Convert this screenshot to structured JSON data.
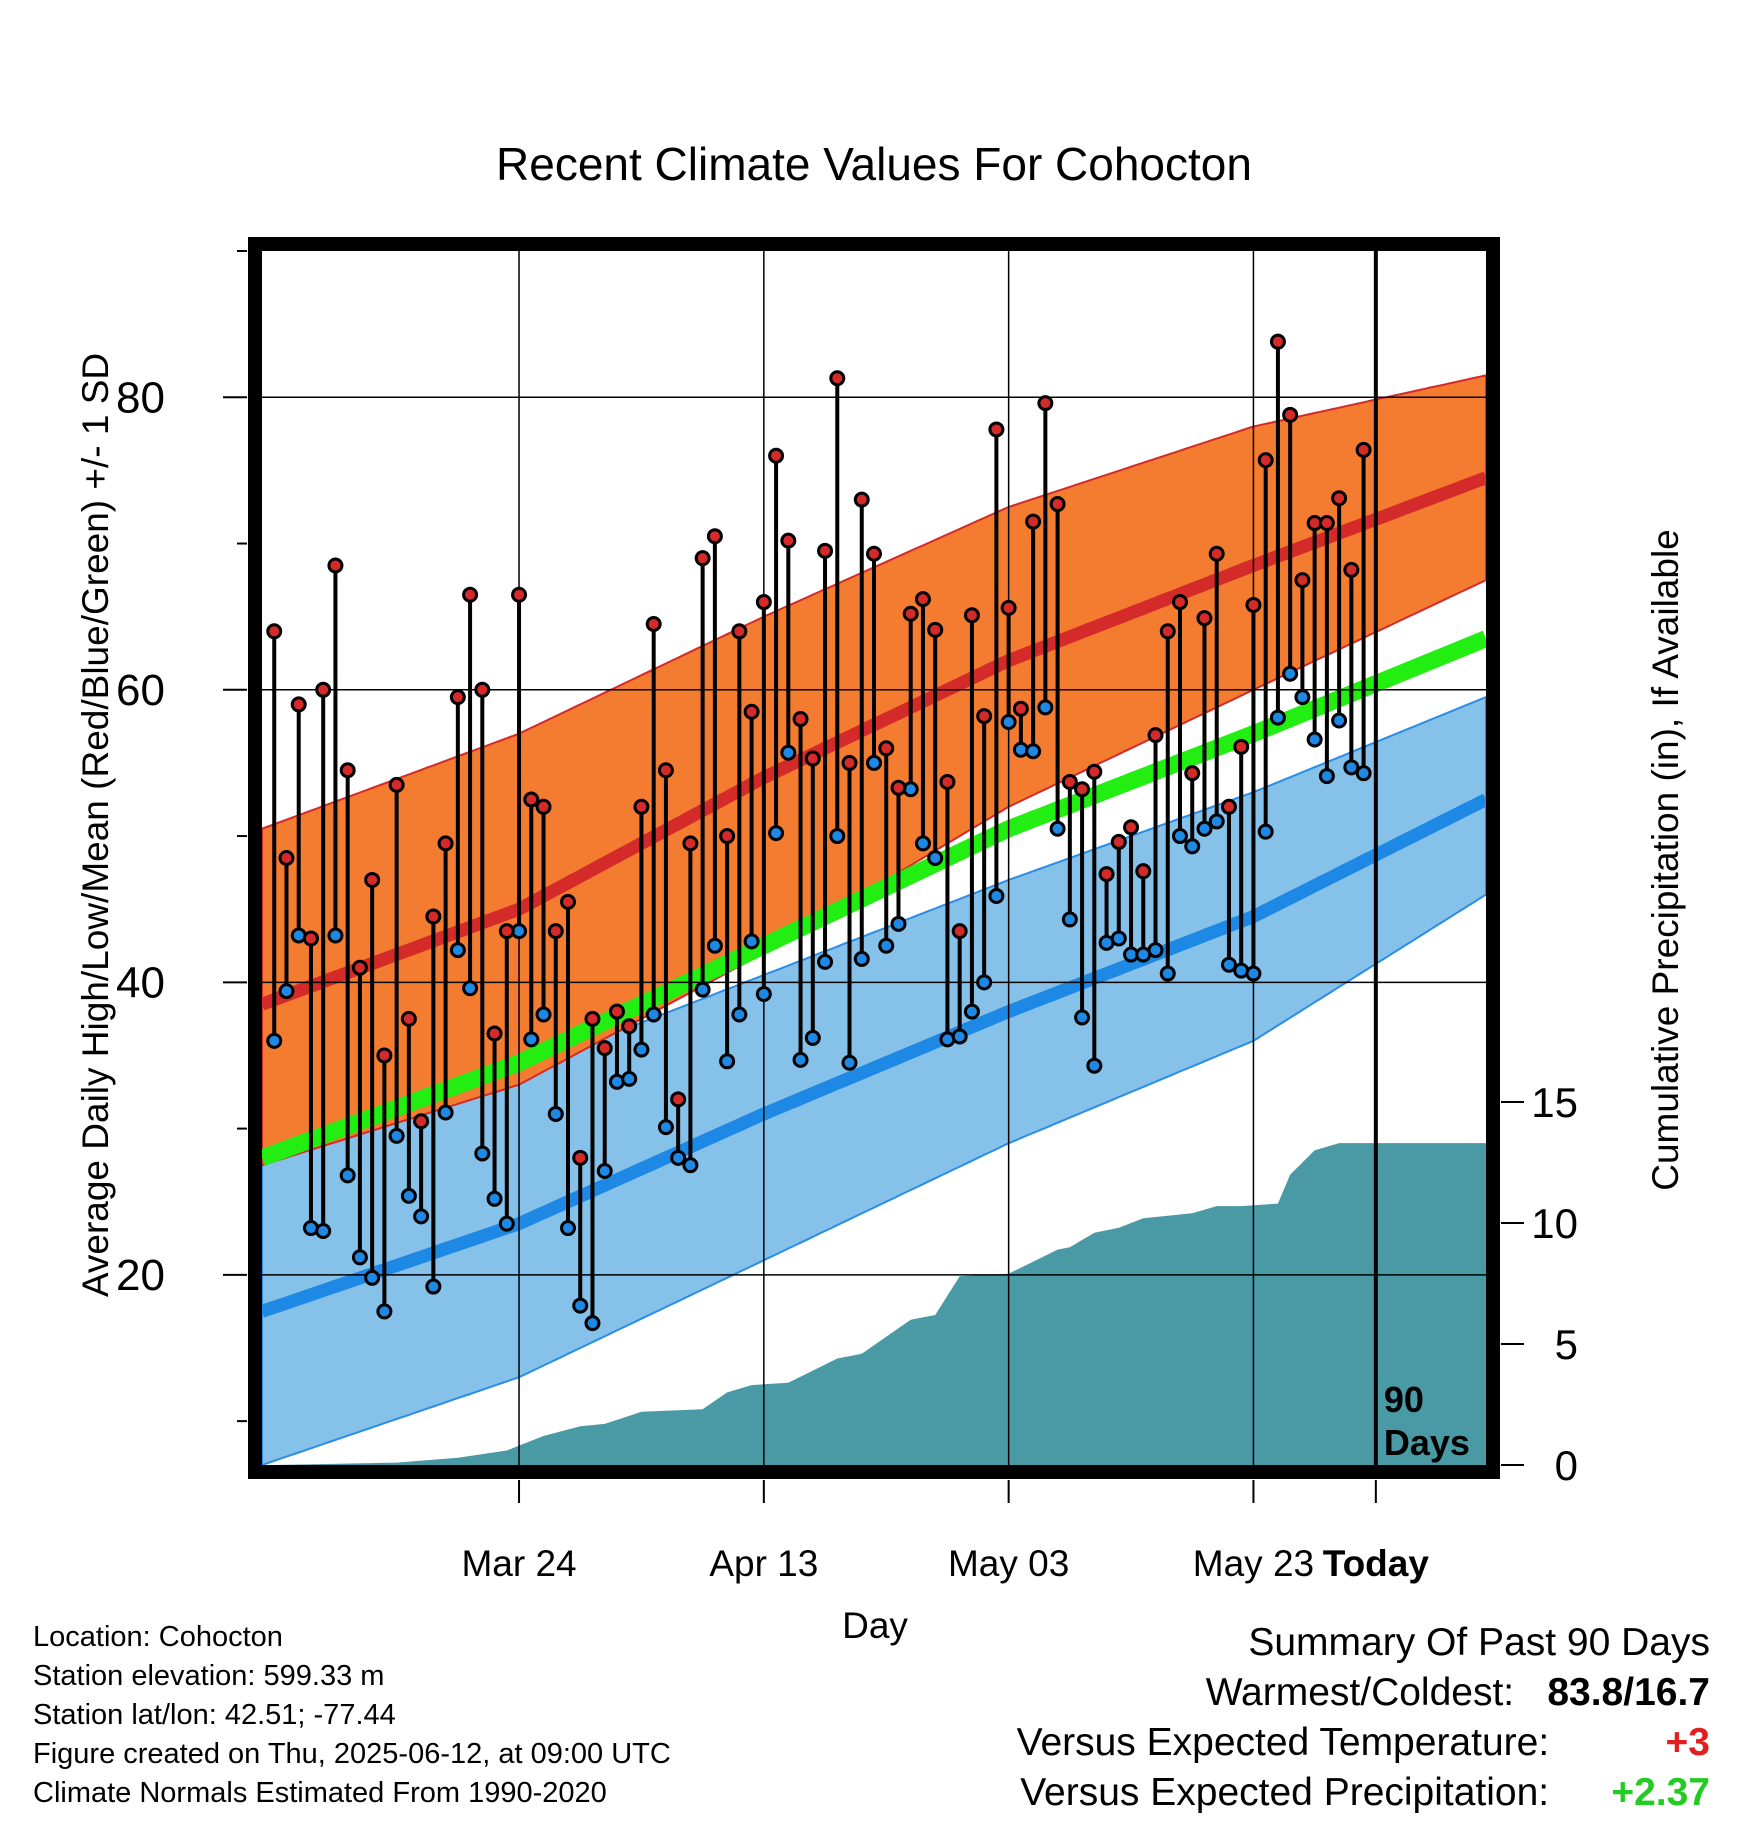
{
  "title": "Recent Climate Values For Cohocton",
  "chart_data": {
    "type": "line",
    "title": "Recent Climate Values For Cohocton",
    "xlabel": "Day",
    "ylabel": "Average Daily High/Low/Mean (Red/Blue/Green) +/- 1 SD",
    "y2label": "Cumulative Precipitation (in), If Available",
    "x_tick_labels": [
      "Mar 24",
      "Apr 13",
      "May 03",
      "May 23",
      "Today"
    ],
    "y_ticks": [
      "20",
      "40",
      "60",
      "80"
    ],
    "y2_ticks": [
      "0",
      "5",
      "10",
      "15"
    ],
    "ylim": [
      7,
      90
    ],
    "y2lim": [
      0,
      15
    ],
    "xlim": [
      -91,
      9
    ],
    "today_label": "90 Days",
    "grid": true,
    "colors": {
      "high_band": "#f47c30",
      "high_line": "#d42a2a",
      "low_band": "#85c1e9",
      "low_line": "#1e88e5",
      "mean_line": "#22ee11",
      "precip": "#4a9aa5",
      "high_marker": "#d42a2a",
      "low_marker": "#1e88e5"
    },
    "normals": {
      "x": [
        -91,
        -70,
        -50,
        -30,
        -10,
        9
      ],
      "high_mean": [
        38.5,
        45,
        54,
        62,
        68.5,
        74.5
      ],
      "high_upper": [
        50.5,
        57,
        65,
        72.5,
        78,
        81.5
      ],
      "high_lower": [
        27.5,
        33,
        42,
        52,
        60,
        67.5
      ],
      "low_mean": [
        17.5,
        23.5,
        31,
        38,
        44.5,
        52.5
      ],
      "low_upper": [
        29,
        34,
        40.5,
        47,
        53,
        59.5
      ],
      "low_lower": [
        7,
        13,
        21,
        29,
        36,
        46
      ],
      "avg_mean": [
        28,
        34.5,
        42.5,
        50.5,
        57,
        63.5
      ]
    },
    "series": [
      {
        "name": "High",
        "x": [
          -90,
          -89,
          -88,
          -87,
          -86,
          -85,
          -84,
          -83,
          -82,
          -81,
          -80,
          -79,
          -78,
          -77,
          -76,
          -75,
          -74,
          -73,
          -72,
          -71,
          -70,
          -69,
          -68,
          -67,
          -66,
          -65,
          -64,
          -63,
          -62,
          -61,
          -60,
          -59,
          -58,
          -57,
          -56,
          -55,
          -54,
          -53,
          -52,
          -51,
          -50,
          -49,
          -48,
          -47,
          -46,
          -45,
          -44,
          -43,
          -42,
          -41,
          -40,
          -39,
          -38,
          -37,
          -36,
          -35,
          -34,
          -33,
          -32,
          -31,
          -30,
          -29,
          -28,
          -27,
          -26,
          -25,
          -24,
          -23,
          -22,
          -21,
          -20,
          -19,
          -18,
          -17,
          -16,
          -15,
          -14,
          -13,
          -12,
          -11,
          -10,
          -9,
          -8,
          -7,
          -6,
          -5,
          -4,
          -3,
          -2,
          -1
        ],
        "values": [
          64,
          48.5,
          59,
          43,
          60,
          68.5,
          54.5,
          41,
          47,
          35,
          53.5,
          37.5,
          30.5,
          44.5,
          49.5,
          59.5,
          66.5,
          60,
          36.5,
          43.5,
          66.5,
          52.5,
          52,
          43.5,
          45.5,
          28,
          37.5,
          35.5,
          38,
          37,
          52,
          64.5,
          54.5,
          32,
          49.5,
          69,
          70.5,
          50,
          64,
          58.5,
          66,
          76,
          70.2,
          58,
          55.3,
          69.5,
          81.3,
          55,
          73,
          69.3,
          56,
          53.3,
          65.2,
          66.2,
          64.1,
          53.7,
          43.5,
          65.1,
          58.2,
          77.8,
          65.6,
          58.7,
          71.5,
          79.6,
          72.7,
          53.7,
          53.2,
          54.4,
          47.4,
          49.6,
          50.6,
          47.6,
          56.9,
          64,
          66,
          54.3,
          64.9,
          69.3,
          52,
          56.1,
          65.8,
          75.7,
          83.8,
          78.8,
          67.5,
          71.4,
          71.4,
          73.1,
          68.2,
          76.4
        ]
      },
      {
        "name": "Low",
        "x": [
          -90,
          -89,
          -88,
          -87,
          -86,
          -85,
          -84,
          -83,
          -82,
          -81,
          -80,
          -79,
          -78,
          -77,
          -76,
          -75,
          -74,
          -73,
          -72,
          -71,
          -70,
          -69,
          -68,
          -67,
          -66,
          -65,
          -64,
          -63,
          -62,
          -61,
          -60,
          -59,
          -58,
          -57,
          -56,
          -55,
          -54,
          -53,
          -52,
          -51,
          -50,
          -49,
          -48,
          -47,
          -46,
          -45,
          -44,
          -43,
          -42,
          -41,
          -40,
          -39,
          -38,
          -37,
          -36,
          -35,
          -34,
          -33,
          -32,
          -31,
          -30,
          -29,
          -28,
          -27,
          -26,
          -25,
          -24,
          -23,
          -22,
          -21,
          -20,
          -19,
          -18,
          -17,
          -16,
          -15,
          -14,
          -13,
          -12,
          -11,
          -10,
          -9,
          -8,
          -7,
          -6,
          -5,
          -4,
          -3,
          -2,
          -1
        ],
        "values": [
          36,
          39.4,
          43.2,
          23.2,
          23,
          43.2,
          26.8,
          21.2,
          19.8,
          17.5,
          29.5,
          25.4,
          24,
          19.2,
          31.1,
          42.2,
          39.6,
          28.3,
          25.2,
          23.5,
          43.5,
          36.1,
          37.8,
          31,
          23.2,
          17.9,
          16.7,
          27.1,
          33.2,
          33.4,
          35.4,
          37.8,
          30.1,
          28,
          27.5,
          39.5,
          42.5,
          34.6,
          37.8,
          42.8,
          39.2,
          50.2,
          55.7,
          34.7,
          36.2,
          41.4,
          50,
          34.5,
          41.6,
          55,
          42.5,
          44,
          53.2,
          49.5,
          48.5,
          36.1,
          36.3,
          38,
          40,
          45.9,
          57.8,
          55.9,
          55.8,
          58.8,
          50.5,
          44.3,
          37.6,
          34.3,
          42.7,
          43,
          41.9,
          41.9,
          42.2,
          40.6,
          50,
          49.3,
          50.5,
          51,
          41.2,
          40.8,
          40.6,
          50.3,
          58.1,
          61.1,
          59.5,
          56.6,
          54.1,
          57.9,
          54.7,
          54.3
        ]
      },
      {
        "name": "Cumulative Precipitation",
        "x": [
          -90,
          -80,
          -75,
          -71,
          -68,
          -65,
          -63,
          -60,
          -55,
          -53,
          -51,
          -48,
          -46,
          -44,
          -42,
          -40,
          -38,
          -36,
          -34,
          -30,
          -26,
          -25,
          -23,
          -21,
          -19,
          -17,
          -15,
          -13,
          -11,
          -8,
          -7,
          -5,
          -3,
          0,
          9
        ],
        "values": [
          0,
          0.1,
          0.3,
          0.6,
          1.2,
          1.6,
          1.7,
          2.2,
          2.3,
          3,
          3.3,
          3.4,
          3.9,
          4.4,
          4.6,
          5.3,
          6,
          6.2,
          7.8,
          7.9,
          8.9,
          9,
          9.6,
          9.8,
          10.2,
          10.3,
          10.4,
          10.7,
          10.7,
          10.8,
          12,
          13,
          13.3,
          13.3,
          13.3
        ]
      }
    ]
  },
  "info": {
    "location": "Location: Cohocton",
    "elevation": "Station elevation: 599.33 m",
    "latlon": "Station lat/lon: 42.51; -77.44",
    "created": "Figure created on Thu, 2025-06-12, at 09:00 UTC",
    "normals": "Climate Normals Estimated From 1990-2020"
  },
  "summary": {
    "heading": "Summary Of Past 90 Days",
    "warmest_coldest_label": "Warmest/Coldest:",
    "warmest_coldest_value": "83.8/16.7",
    "temp_label": "Versus Expected Temperature:",
    "temp_value": "+3",
    "precip_label": "Versus Expected Precipitation:",
    "precip_value": "+2.37"
  }
}
